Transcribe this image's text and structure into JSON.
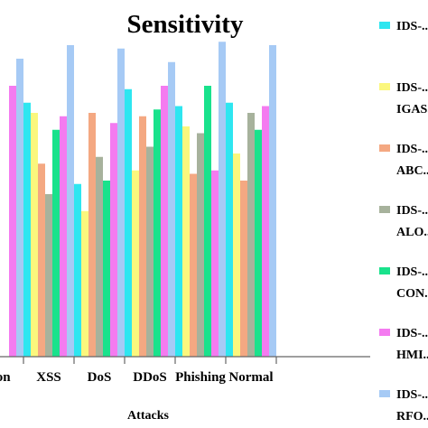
{
  "chart_data": {
    "type": "bar",
    "title": "Sensitivity",
    "xlabel": "Attacks",
    "ylabel": "",
    "ylim": [
      0,
      100
    ],
    "grid": false,
    "legend_position": "right",
    "categories": [
      "...on",
      "XSS",
      "DoS",
      "DDoS",
      "Phishing",
      "Normal"
    ],
    "series": [
      {
        "name": "IDS-...",
        "color": "#2ee6f0",
        "values": [
          null,
          75,
          51,
          79,
          74,
          75
        ]
      },
      {
        "name": "IDS-... IGAS...",
        "color": "#fbf77d",
        "values": [
          null,
          72,
          43,
          55,
          68,
          60
        ]
      },
      {
        "name": "IDS-... ABC...",
        "color": "#f4a882",
        "values": [
          null,
          57,
          72,
          71,
          54,
          52
        ]
      },
      {
        "name": "IDS-... ALO...",
        "color": "#a7b29c",
        "values": [
          null,
          48,
          59,
          62,
          66,
          72
        ]
      },
      {
        "name": "IDS-... CON...",
        "color": "#19e28c",
        "values": [
          null,
          67,
          52,
          73,
          80,
          67
        ]
      },
      {
        "name": "IDS-... HMI...",
        "color": "#f47bf0",
        "values": [
          80,
          71,
          69,
          80,
          55,
          74
        ]
      },
      {
        "name": "IDS-... RFO...",
        "color": "#a6caf5",
        "values": [
          88,
          92,
          91,
          87,
          93,
          92
        ]
      }
    ]
  }
}
